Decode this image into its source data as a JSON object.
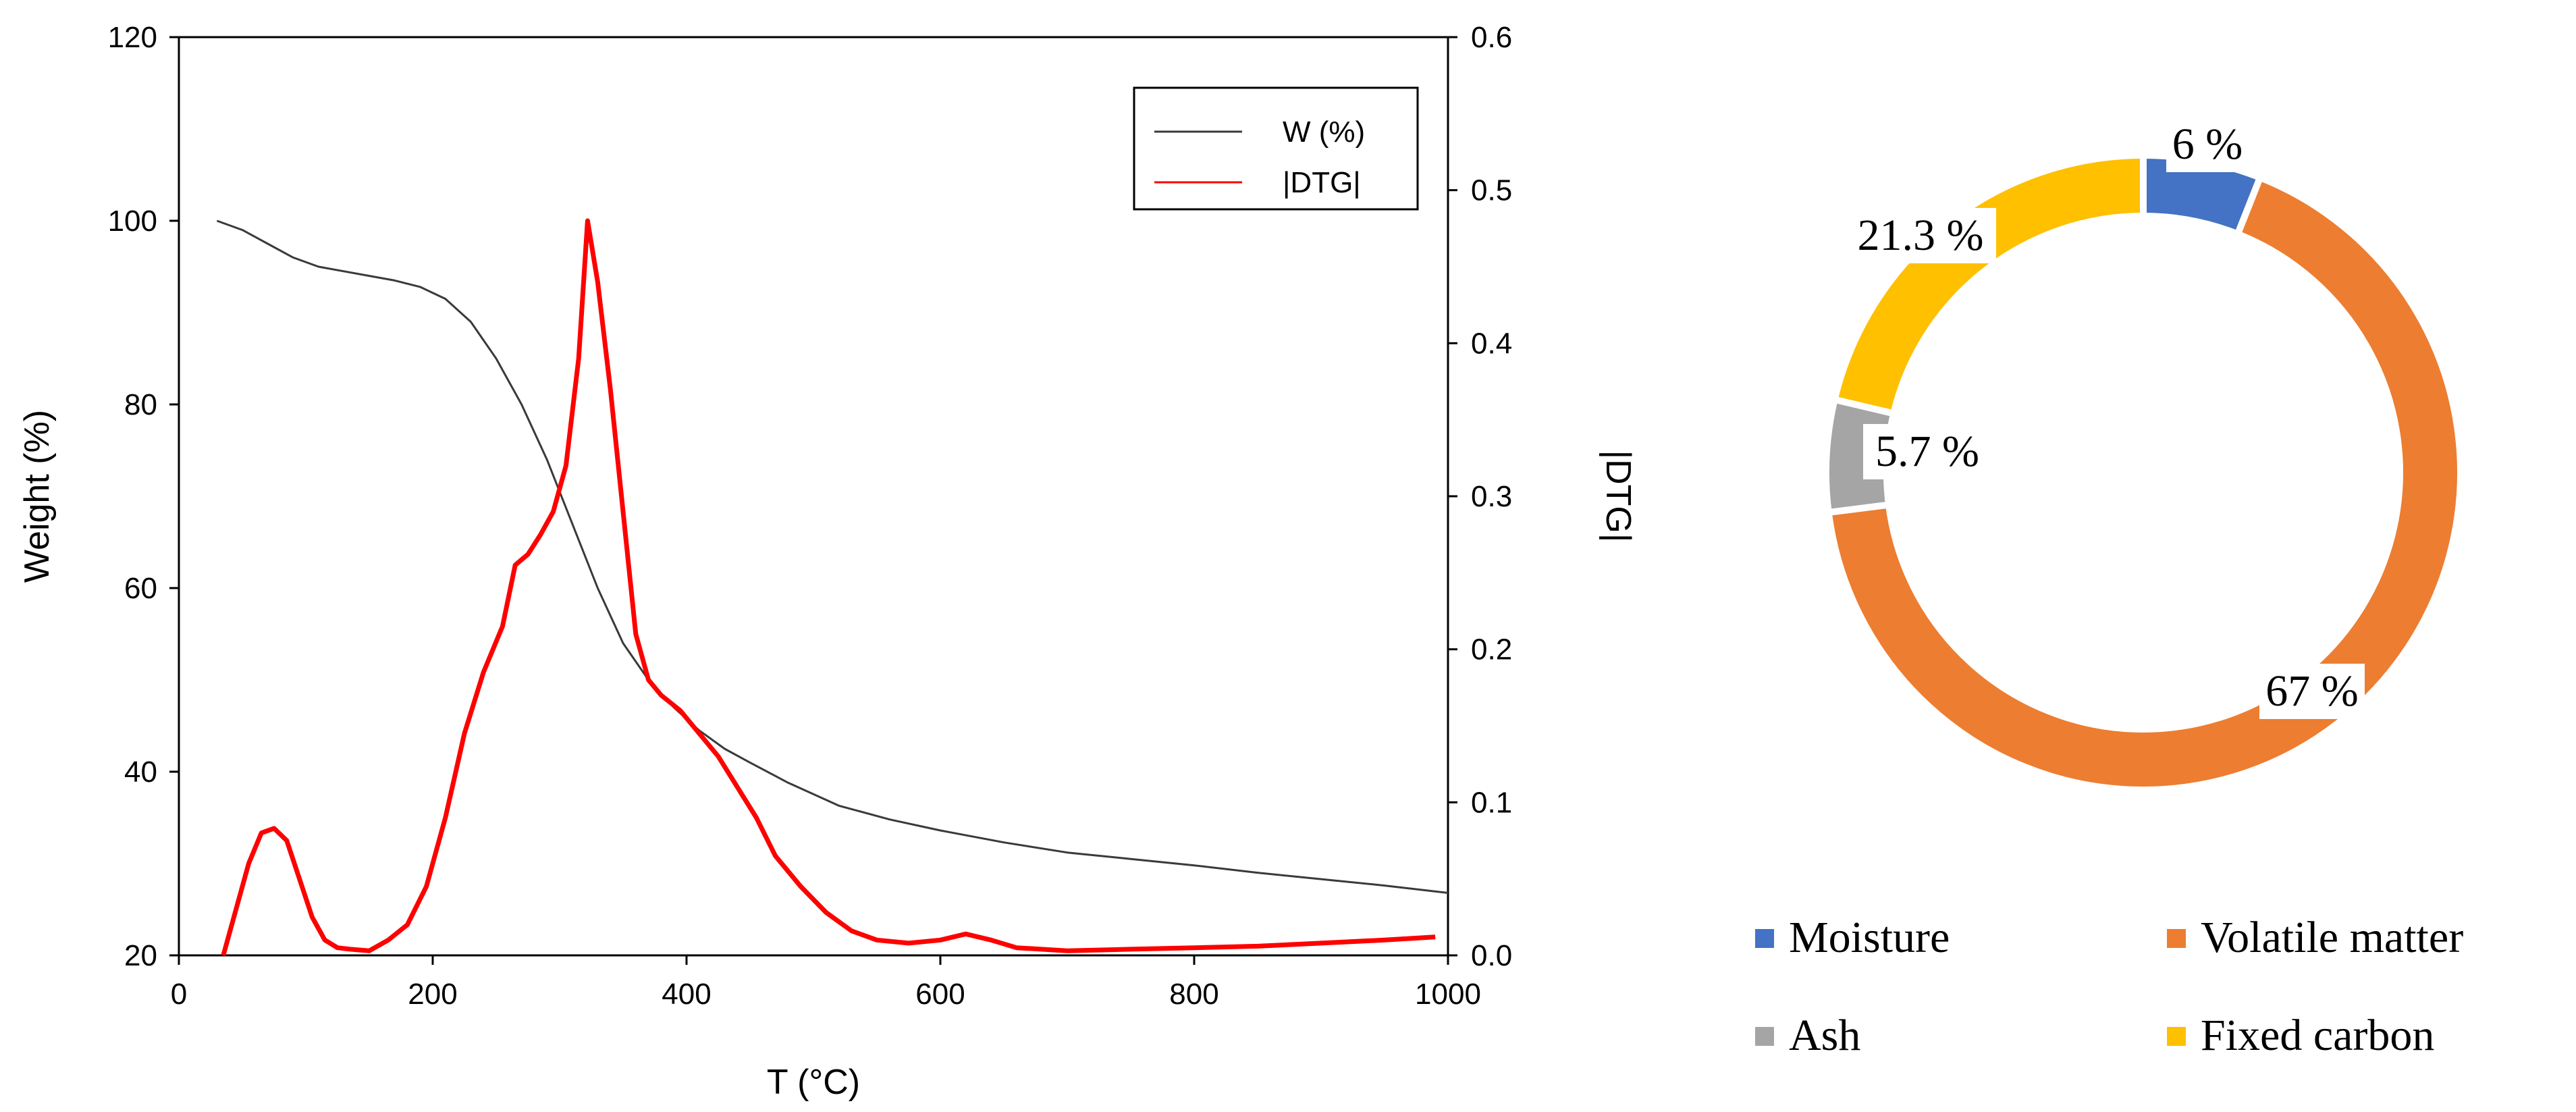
{
  "chart_data": [
    {
      "type": "line",
      "title": "",
      "xlabel": "T (°C)",
      "ylabel": "Weight (%)",
      "y2label": "|DTG|",
      "xlim": [
        0,
        1000
      ],
      "ylim": [
        20,
        120
      ],
      "y2lim": [
        0.0,
        0.6
      ],
      "x_ticks": [
        0,
        200,
        400,
        600,
        800,
        1000
      ],
      "y_ticks": [
        20,
        40,
        60,
        80,
        100,
        120
      ],
      "y2_ticks": [
        0.0,
        0.1,
        0.2,
        0.3,
        0.4,
        0.5,
        0.6
      ],
      "y2_tick_labels": [
        "0.0",
        "0.1",
        "0.2",
        "0.3",
        "0.4",
        "0.5",
        "0.6"
      ],
      "grid": false,
      "legend_position": "top-right",
      "series": [
        {
          "name": "W (%)",
          "axis": "left",
          "color": "#3a3a3a",
          "x": [
            30,
            50,
            70,
            90,
            110,
            130,
            150,
            170,
            190,
            210,
            230,
            250,
            270,
            290,
            310,
            330,
            350,
            370,
            390,
            410,
            430,
            450,
            480,
            520,
            560,
            600,
            650,
            700,
            750,
            800,
            850,
            900,
            950,
            1000
          ],
          "y": [
            100,
            99,
            97.5,
            96,
            95,
            94.5,
            94,
            93.5,
            92.8,
            91.5,
            89,
            85,
            80,
            74,
            67,
            60,
            54,
            50,
            47,
            44.5,
            42.5,
            41,
            38.8,
            36.3,
            34.8,
            33.6,
            32.3,
            31.2,
            30.5,
            29.8,
            29,
            28.3,
            27.6,
            26.8
          ]
        },
        {
          "name": "|DTG|",
          "axis": "right",
          "color": "#ff0000",
          "x": [
            35,
            45,
            55,
            65,
            75,
            85,
            95,
            105,
            115,
            125,
            135,
            150,
            165,
            180,
            195,
            210,
            225,
            240,
            255,
            265,
            275,
            285,
            295,
            305,
            315,
            322,
            330,
            340,
            350,
            360,
            370,
            380,
            395,
            410,
            425,
            440,
            455,
            470,
            490,
            510,
            530,
            550,
            575,
            600,
            620,
            640,
            660,
            700,
            750,
            800,
            850,
            900,
            950,
            990
          ],
          "y": [
            0.0,
            0.03,
            0.06,
            0.08,
            0.083,
            0.075,
            0.05,
            0.025,
            0.01,
            0.005,
            0.004,
            0.003,
            0.01,
            0.02,
            0.045,
            0.09,
            0.145,
            0.185,
            0.215,
            0.255,
            0.262,
            0.275,
            0.29,
            0.32,
            0.39,
            0.48,
            0.44,
            0.37,
            0.29,
            0.21,
            0.18,
            0.17,
            0.16,
            0.145,
            0.13,
            0.11,
            0.09,
            0.065,
            0.045,
            0.028,
            0.016,
            0.01,
            0.008,
            0.01,
            0.014,
            0.01,
            0.005,
            0.003,
            0.004,
            0.005,
            0.006,
            0.008,
            0.01,
            0.012
          ]
        }
      ]
    },
    {
      "type": "pie",
      "variant": "doughnut",
      "title": "",
      "legend_position": "bottom",
      "categories": [
        "Moisture",
        "Volatile matter",
        "Ash",
        "Fixed carbon"
      ],
      "values": [
        6,
        67,
        5.7,
        21.3
      ],
      "data_labels": [
        "6 %",
        "67 %",
        "5.7 %",
        "21.3 %"
      ],
      "colors": [
        "#4472c4",
        "#ed7d31",
        "#a5a5a5",
        "#ffc000"
      ]
    }
  ]
}
